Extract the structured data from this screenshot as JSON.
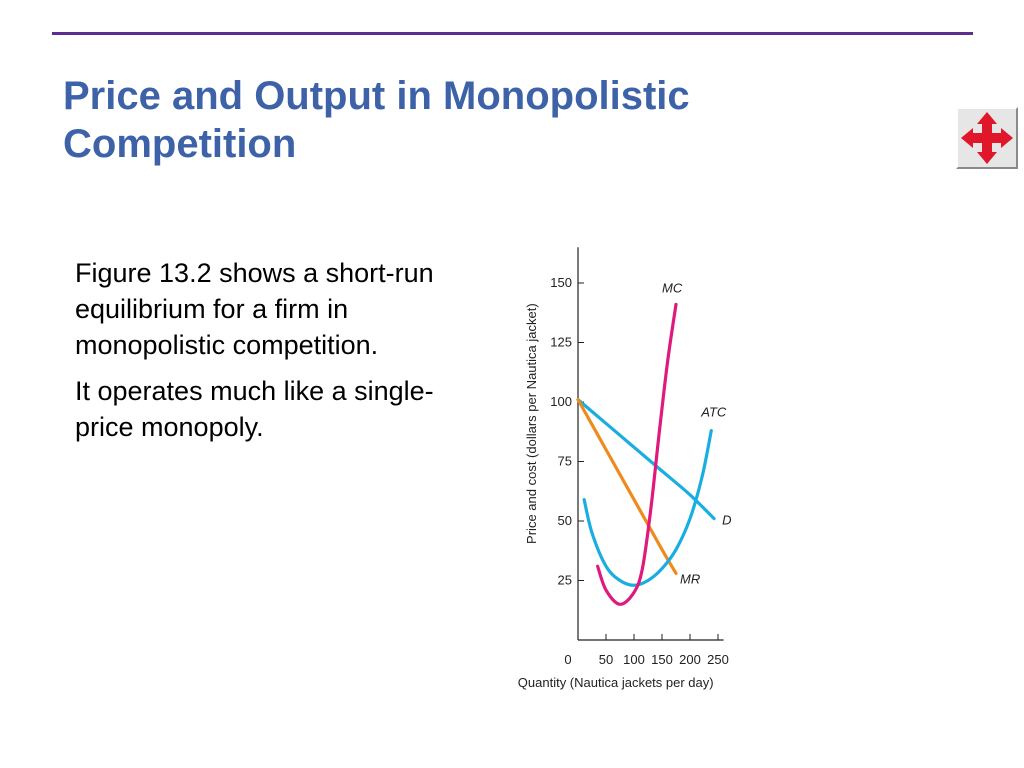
{
  "slide": {
    "title": "Price and Output in Monopolistic Competition",
    "accent_color": "#5a2d91",
    "title_color": "#3d62a8",
    "nav_icon": "four-way-arrows-icon",
    "paragraphs": [
      "Figure 13.2 shows a short-run equilibrium for a firm in monopolistic competition.",
      "It operates much like a single-price monopoly."
    ]
  },
  "chart_data": {
    "type": "line",
    "xlabel": "Quantity (Nautica jackets per day)",
    "ylabel": "Price and cost (dollars per Nautica jacket)",
    "xlim": [
      0,
      260
    ],
    "ylim": [
      0,
      165
    ],
    "x_ticks": [
      "0",
      "50",
      "100",
      "150",
      "200",
      "250"
    ],
    "x_tick_values": [
      0,
      50,
      100,
      150,
      200,
      250
    ],
    "y_ticks": [
      "25",
      "50",
      "75",
      "100",
      "125",
      "150"
    ],
    "y_tick_values": [
      25,
      50,
      75,
      100,
      125,
      150
    ],
    "series": [
      {
        "name": "D",
        "color": "#1aaee0",
        "points": [
          [
            0,
            101
          ],
          [
            50,
            91
          ],
          [
            100,
            81
          ],
          [
            150,
            71
          ],
          [
            200,
            61
          ],
          [
            243,
            51
          ]
        ]
      },
      {
        "name": "MR",
        "color": "#ef8a1f",
        "points": [
          [
            0,
            101
          ],
          [
            50,
            80
          ],
          [
            100,
            59
          ],
          [
            150,
            38
          ],
          [
            175,
            28
          ]
        ]
      },
      {
        "name": "ATC",
        "color": "#1aaee0",
        "points": [
          [
            11,
            59
          ],
          [
            25,
            45
          ],
          [
            50,
            31
          ],
          [
            75,
            25
          ],
          [
            100,
            23
          ],
          [
            125,
            25
          ],
          [
            150,
            30
          ],
          [
            175,
            38
          ],
          [
            200,
            51
          ],
          [
            222,
            69
          ],
          [
            238,
            88
          ]
        ]
      },
      {
        "name": "MC",
        "color": "#e0197d",
        "points": [
          [
            35,
            31
          ],
          [
            50,
            21
          ],
          [
            75,
            15
          ],
          [
            100,
            20
          ],
          [
            115,
            30
          ],
          [
            130,
            55
          ],
          [
            145,
            87
          ],
          [
            160,
            117
          ],
          [
            175,
            141
          ]
        ]
      }
    ]
  }
}
